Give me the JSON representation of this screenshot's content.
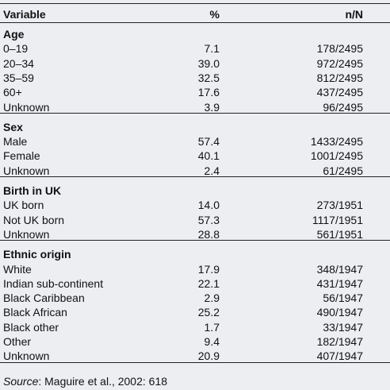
{
  "table": {
    "header": [
      "Variable",
      "%",
      "n/N"
    ],
    "sections": [
      {
        "title": "Age",
        "rows": [
          [
            "0–19",
            "7.1",
            "178/2495"
          ],
          [
            "20–34",
            "39.0",
            "972/2495"
          ],
          [
            "35–59",
            "32.5",
            "812/2495"
          ],
          [
            "60+",
            "17.6",
            "437/2495"
          ],
          [
            "Unknown",
            "3.9",
            "96/2495"
          ]
        ]
      },
      {
        "title": "Sex",
        "rows": [
          [
            "Male",
            "57.4",
            "1433/2495"
          ],
          [
            "Female",
            "40.1",
            "1001/2495"
          ],
          [
            "Unknown",
            "2.4",
            "61/2495"
          ]
        ]
      },
      {
        "title": "Birth in UK",
        "rows": [
          [
            "UK born",
            "14.0",
            "273/1951"
          ],
          [
            "Not UK born",
            "57.3",
            "1117/1951"
          ],
          [
            "Unknown",
            "28.8",
            "561/1951"
          ]
        ]
      },
      {
        "title": "Ethnic origin",
        "rows": [
          [
            "White",
            "17.9",
            "348/1947"
          ],
          [
            "Indian sub-continent",
            "22.1",
            "431/1947"
          ],
          [
            "Black Caribbean",
            "2.9",
            "56/1947"
          ],
          [
            "Black African",
            "25.2",
            "490/1947"
          ],
          [
            "Black other",
            "1.7",
            "33/1947"
          ],
          [
            "Other",
            "9.4",
            "182/1947"
          ],
          [
            "Unknown",
            "20.9",
            "407/1947"
          ]
        ]
      }
    ]
  },
  "source": {
    "label": "Source",
    "text": ": Maguire et al., 2002: 618"
  }
}
